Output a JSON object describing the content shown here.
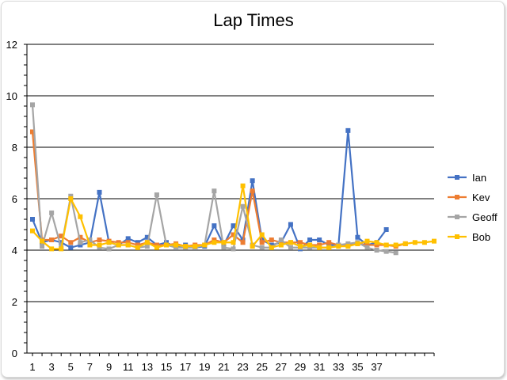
{
  "chart_data": {
    "type": "line",
    "title": "Lap Times",
    "xlabel": "",
    "ylabel": "",
    "ylim": [
      0,
      12
    ],
    "y_ticks": [
      0,
      2,
      4,
      6,
      8,
      10,
      12
    ],
    "x_tick_labels": [
      "1",
      "3",
      "5",
      "7",
      "9",
      "11",
      "13",
      "15",
      "17",
      "19",
      "21",
      "23",
      "25",
      "27",
      "29",
      "31",
      "33",
      "35",
      "37"
    ],
    "x_range": [
      1,
      43
    ],
    "grid": "horizontal major",
    "legend_position": "right",
    "series": [
      {
        "name": "Ian",
        "color": "#4472C4",
        "values": [
          5.2,
          4.3,
          4.4,
          4.3,
          4.1,
          4.2,
          4.3,
          6.25,
          4.3,
          4.2,
          4.45,
          4.3,
          4.5,
          4.2,
          4.3,
          4.1,
          4.2,
          4.1,
          4.15,
          4.95,
          4.2,
          4.95,
          4.4,
          6.7,
          4.4,
          4.2,
          4.3,
          5.0,
          4.05,
          4.4,
          4.4,
          4.2,
          4.2,
          8.65,
          4.5,
          4.2,
          4.3,
          4.8
        ]
      },
      {
        "name": "Kev",
        "color": "#ED7D31",
        "values": [
          8.6,
          4.4,
          4.4,
          4.55,
          4.3,
          4.5,
          4.3,
          4.4,
          4.35,
          4.3,
          4.3,
          4.2,
          4.3,
          4.2,
          4.2,
          4.25,
          4.15,
          4.2,
          4.2,
          4.4,
          4.3,
          4.6,
          4.3,
          6.3,
          4.3,
          4.4,
          4.3,
          4.3,
          4.3,
          4.2,
          4.2,
          4.3,
          4.2,
          4.2,
          4.25,
          4.2,
          4.2,
          4.2,
          4.15,
          4.25
        ]
      },
      {
        "name": "Geoff",
        "color": "#A5A5A5",
        "values": [
          9.65,
          4.15,
          5.45,
          4.1,
          6.1,
          4.3,
          4.4,
          4.1,
          4.05,
          4.2,
          4.2,
          4.1,
          4.15,
          6.15,
          4.2,
          4.1,
          4.1,
          4.1,
          4.2,
          6.3,
          4.1,
          4.05,
          5.7,
          4.2,
          4.1,
          4.1,
          4.4,
          4.1,
          4.1,
          4.1,
          4.1,
          4.1,
          4.2,
          4.25,
          4.3,
          4.1,
          4.0,
          3.95,
          3.9
        ]
      },
      {
        "name": "Bob",
        "color": "#FFC000",
        "values": [
          4.75,
          4.35,
          4.05,
          4.05,
          6.0,
          5.3,
          4.2,
          4.2,
          4.3,
          4.2,
          4.2,
          4.1,
          4.3,
          4.1,
          4.2,
          4.2,
          4.15,
          4.15,
          4.2,
          4.3,
          4.3,
          4.3,
          6.5,
          4.15,
          4.6,
          4.1,
          4.2,
          4.3,
          4.15,
          4.2,
          4.1,
          4.1,
          4.15,
          4.15,
          4.25,
          4.35,
          4.3,
          4.2,
          4.2,
          4.25,
          4.3,
          4.3,
          4.35
        ]
      }
    ]
  }
}
